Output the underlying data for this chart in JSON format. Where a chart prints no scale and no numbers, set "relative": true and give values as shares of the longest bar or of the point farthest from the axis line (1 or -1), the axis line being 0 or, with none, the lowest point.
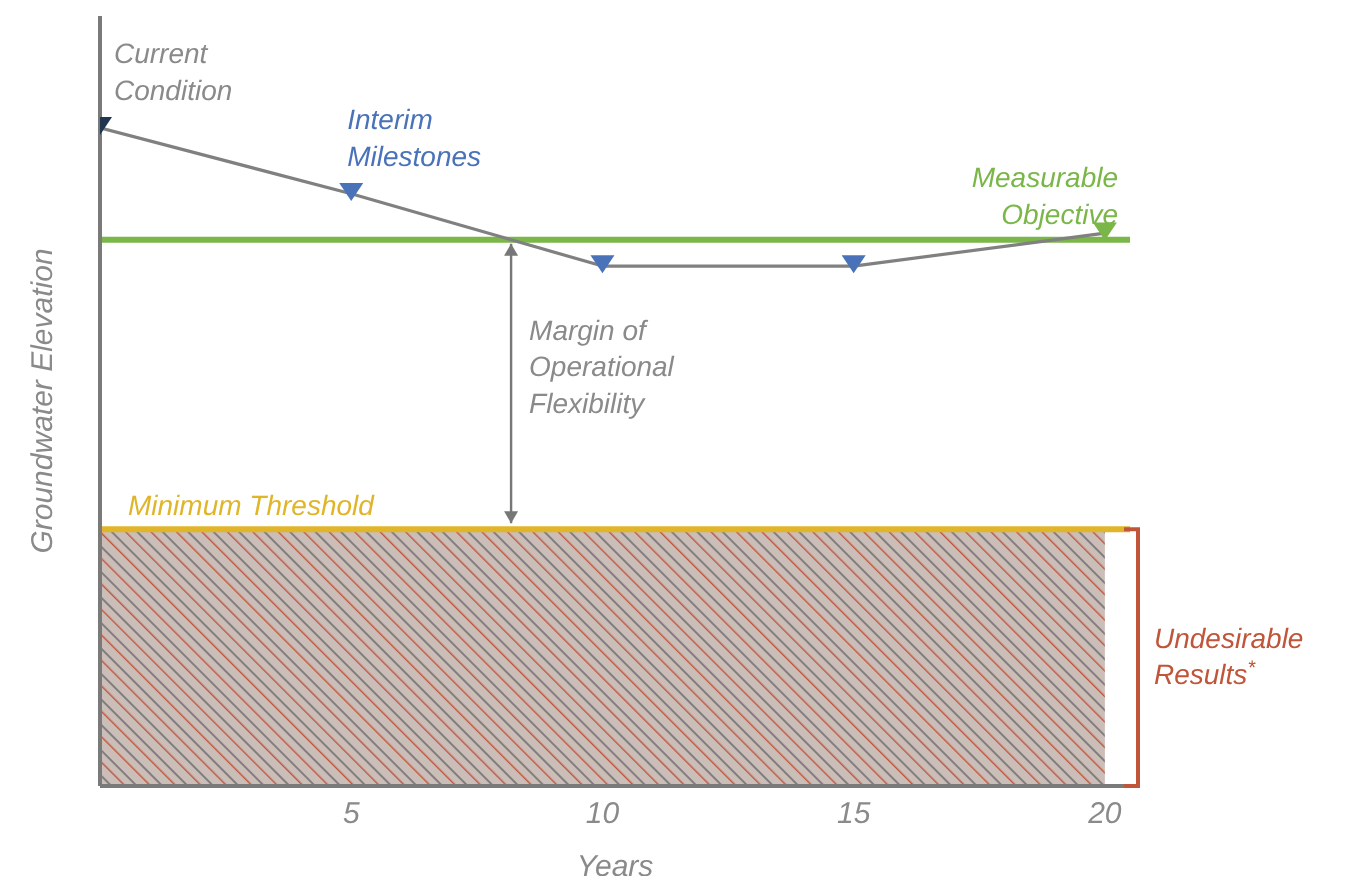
{
  "chart_data": {
    "type": "line",
    "relative": true,
    "xlabel": "Years",
    "ylabel": "Groundwater Elevation",
    "x": [
      0,
      5,
      10,
      15,
      20
    ],
    "series": [
      {
        "color": "#808080",
        "colors": [
          "#1f3550",
          "#4a72b8",
          "#4a72b8",
          "#4a72b8",
          "#7ab648"
        ],
        "values": [
          1,
          0.9,
          0.79,
          0.79,
          0.84
        ]
      }
    ],
    "xlim": [
      0,
      20.5
    ],
    "xticks": [
      5,
      10,
      15,
      20
    ],
    "marker": "triangle",
    "ref_lines": [
      {
        "axis": "y",
        "value": 0.83,
        "label": "Measurable Objective",
        "color": "#7ab648"
      },
      {
        "axis": "y",
        "value": 0.39,
        "label": "Minimum Threshold",
        "color": "#e0b52a"
      }
    ],
    "bands": [
      {
        "axis": "y",
        "from": 0,
        "to": 0.39,
        "label": "Undesirable Results$^{*}$",
        "color": "#c0553a"
      }
    ],
    "annotations": [
      {
        "text": "Current Condition",
        "x": 0,
        "y": 1
      },
      {
        "text": "Interim Milestones",
        "x": 5,
        "y": 0.9
      },
      "Margin of Operational Flexibility"
    ]
  }
}
